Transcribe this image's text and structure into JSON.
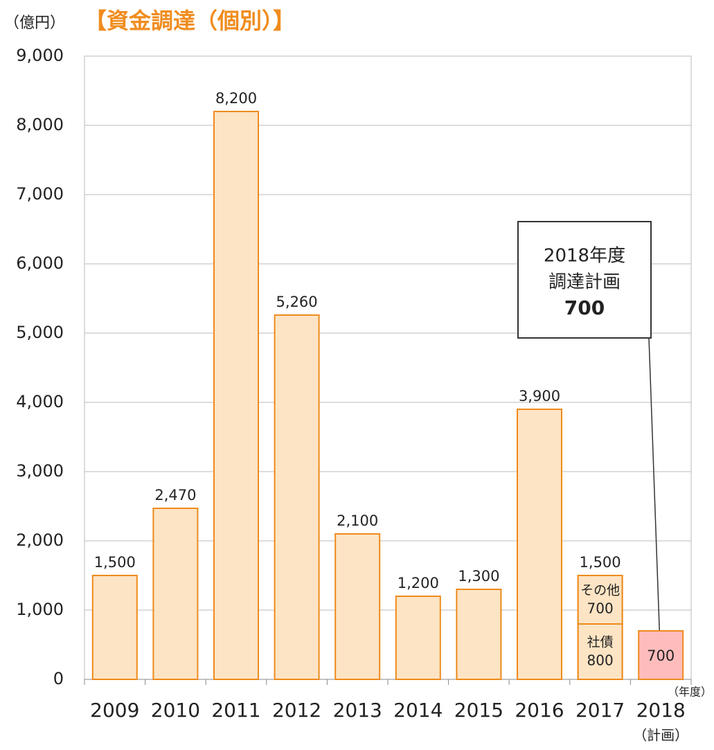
{
  "chart_data": {
    "type": "bar",
    "unit_label": "（億円）",
    "title": "【資金調達（個別）】",
    "x_unit_label": "（年度）",
    "categories": [
      "2009",
      "2010",
      "2011",
      "2012",
      "2013",
      "2014",
      "2015",
      "2016",
      "2017",
      "2018"
    ],
    "category_note": "（計画）",
    "values": [
      1500,
      2470,
      8200,
      5260,
      2100,
      1200,
      1300,
      3900,
      1500,
      700
    ],
    "value_labels": [
      "1,500",
      "2,470",
      "8,200",
      "5,260",
      "2,100",
      "1,200",
      "1,300",
      "3,900",
      "1,500",
      "700"
    ],
    "colors": [
      "#fde4c4",
      "#fde4c4",
      "#fde4c4",
      "#fde4c4",
      "#fde4c4",
      "#fde4c4",
      "#fde4c4",
      "#fde4c4",
      "#fde4c4",
      "#ffbcbc"
    ],
    "stroke_color": "#ee8a1c",
    "breakdown": [
      null,
      null,
      null,
      null,
      null,
      null,
      null,
      null,
      [
        {
          "name": "社債",
          "value": 800
        },
        {
          "name": "その他",
          "value": 700
        }
      ],
      null
    ],
    "ylim": [
      0,
      9000
    ],
    "yticks": [
      {
        "value": 0,
        "label": "0"
      },
      {
        "value": 1000,
        "label": "1,000"
      },
      {
        "value": 2000,
        "label": "2,000"
      },
      {
        "value": 3000,
        "label": "3,000"
      },
      {
        "value": 4000,
        "label": "4,000"
      },
      {
        "value": 5000,
        "label": "5,000"
      },
      {
        "value": 6000,
        "label": "6,000"
      },
      {
        "value": 7000,
        "label": "7,000"
      },
      {
        "value": 8000,
        "label": "8,000"
      },
      {
        "value": 9000,
        "label": "9,000"
      }
    ],
    "grid": true,
    "annotation": {
      "lines": [
        "2018年度",
        "調達計画",
        "700"
      ]
    }
  }
}
